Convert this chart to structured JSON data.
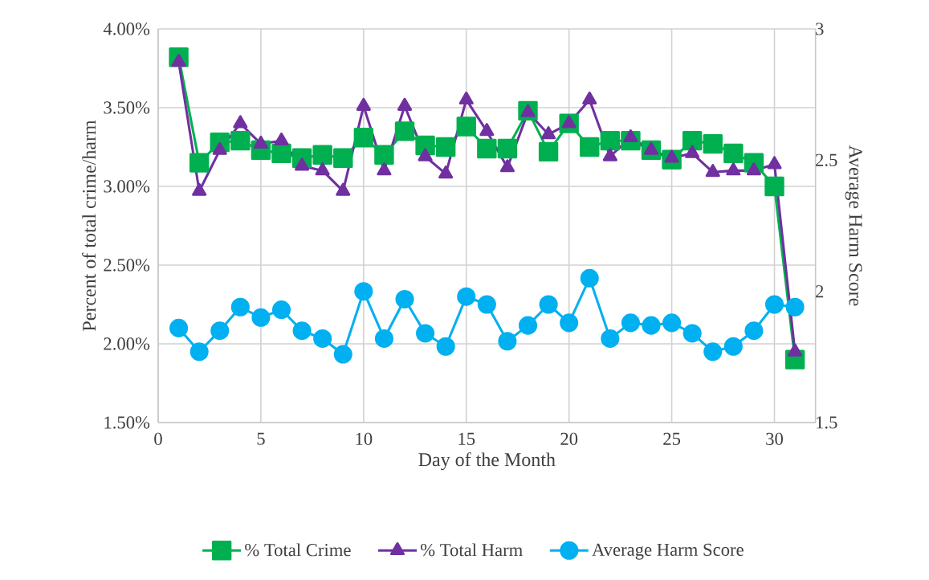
{
  "chart_data": {
    "type": "line",
    "xlabel": "Day of the Month",
    "ylabel": "Percent of total crime/harm",
    "y2label": "Average Harm Score",
    "x": [
      1,
      2,
      3,
      4,
      5,
      6,
      7,
      8,
      9,
      10,
      11,
      12,
      13,
      14,
      15,
      16,
      17,
      18,
      19,
      20,
      21,
      22,
      23,
      24,
      25,
      26,
      27,
      28,
      29,
      30,
      31
    ],
    "series": [
      {
        "name": "% Total Crime",
        "color": "#00b050",
        "marker": "square",
        "values": [
          3.82,
          3.15,
          3.28,
          3.29,
          3.23,
          3.21,
          3.18,
          3.2,
          3.18,
          3.31,
          3.2,
          3.35,
          3.26,
          3.25,
          3.38,
          3.24,
          3.24,
          3.48,
          3.22,
          3.4,
          3.25,
          3.29,
          3.29,
          3.23,
          3.17,
          3.29,
          3.27,
          3.21,
          3.15,
          3.0,
          1.9
        ]
      },
      {
        "name": "% Total Harm",
        "color": "#7030a0",
        "marker": "triangle",
        "values": [
          3.79,
          2.97,
          3.23,
          3.4,
          3.27,
          3.29,
          3.13,
          3.1,
          2.97,
          3.51,
          3.1,
          3.51,
          3.19,
          3.08,
          3.55,
          3.35,
          3.12,
          3.47,
          3.33,
          3.4,
          3.55,
          3.19,
          3.31,
          3.23,
          3.18,
          3.21,
          3.09,
          3.1,
          3.1,
          3.14,
          1.95
        ]
      },
      {
        "name": "Average Harm Score",
        "color": "#00b0f0",
        "marker": "circle",
        "axis": "y2",
        "values": [
          1.86,
          1.77,
          1.85,
          1.94,
          1.9,
          1.93,
          1.85,
          1.82,
          1.76,
          2.0,
          1.82,
          1.97,
          1.84,
          1.79,
          1.98,
          1.95,
          1.81,
          1.87,
          1.95,
          1.88,
          2.05,
          1.82,
          1.88,
          1.87,
          1.88,
          1.84,
          1.77,
          1.79,
          1.85,
          1.95,
          1.94
        ]
      }
    ],
    "xlim": [
      0,
      32
    ],
    "xticks": [
      0,
      5,
      10,
      15,
      20,
      25,
      30
    ],
    "ylim": [
      1.5,
      4.0
    ],
    "yticks": [
      {
        "value": 1.5,
        "label": "1.50%"
      },
      {
        "value": 2.0,
        "label": "2.00%"
      },
      {
        "value": 2.5,
        "label": "2.50%"
      },
      {
        "value": 3.0,
        "label": "3.00%"
      },
      {
        "value": 3.5,
        "label": "3.50%"
      },
      {
        "value": 4.0,
        "label": "4.00%"
      }
    ],
    "y2lim": [
      1.5,
      3
    ],
    "y2ticks": [
      1.5,
      2,
      2.5,
      3
    ],
    "grid": true,
    "legend": "bottom",
    "line_style": "solid"
  }
}
